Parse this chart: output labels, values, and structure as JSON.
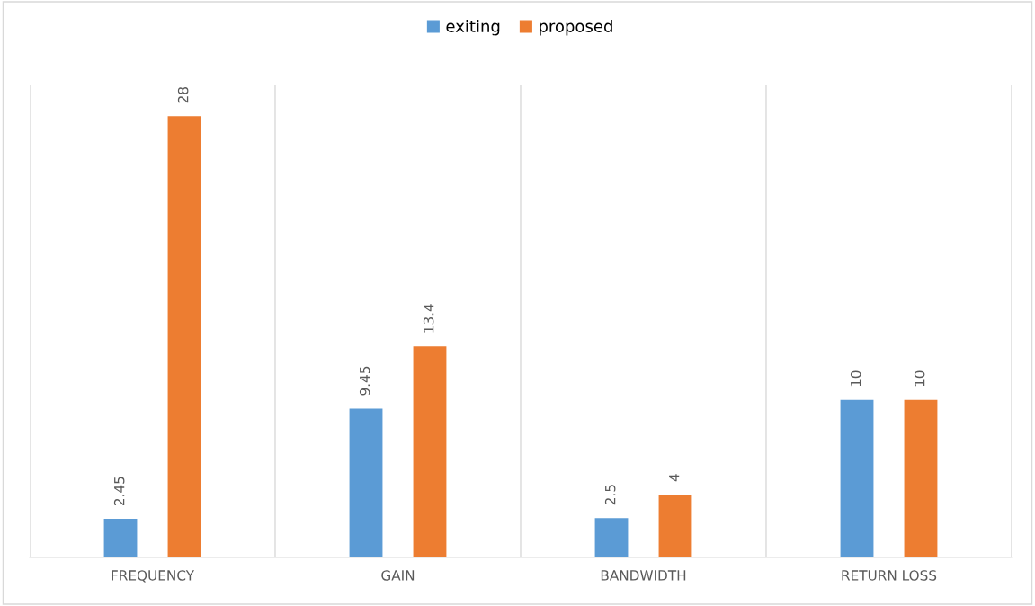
{
  "chart_data": {
    "type": "bar",
    "categories": [
      "FREQUENCY",
      "GAIN",
      "BANDWIDTH",
      "RETURN LOSS"
    ],
    "series": [
      {
        "name": "exiting",
        "color": "#5b9bd5",
        "values": [
          2.45,
          9.45,
          2.5,
          10
        ]
      },
      {
        "name": "proposed",
        "color": "#ed7d31",
        "values": [
          28,
          13.4,
          4,
          10
        ]
      }
    ],
    "data_labels": true,
    "grid": "x",
    "legend": "top",
    "tick_labels": "x"
  }
}
